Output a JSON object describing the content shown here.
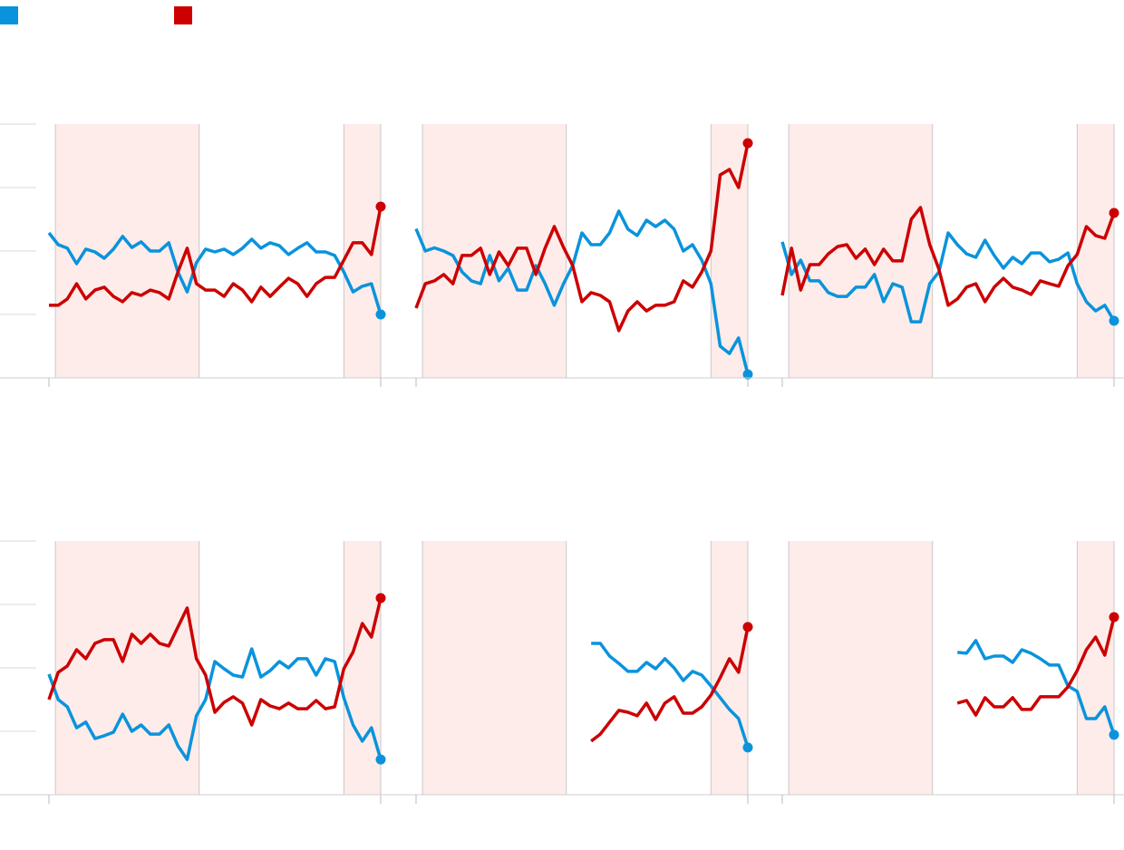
{
  "chart_data": [
    {
      "type": "line",
      "xlim": [
        0,
        36
      ],
      "xticks": [
        0,
        36
      ],
      "ylim": [
        0,
        80
      ],
      "yticks": [
        0,
        20,
        40,
        60,
        80
      ],
      "shading": [
        [
          0.7,
          16.3
        ],
        [
          32,
          36
        ]
      ],
      "shade_color": "#fdecea",
      "series": [
        {
          "color": "#0a93dc",
          "values": [
            45.7,
            42,
            40.9,
            36,
            40.6,
            39.7,
            37.7,
            40.6,
            44.6,
            41.1,
            42.9,
            40,
            40,
            42.6,
            33.4,
            27.1,
            36.3,
            40.6,
            39.7,
            40.6,
            38.9,
            40.9,
            43.7,
            40.9,
            42.6,
            41.7,
            38.9,
            40.9,
            42.6,
            39.7,
            39.7,
            38.6,
            33.4,
            27.1,
            28.9,
            29.7,
            20
          ]
        },
        {
          "color": "#cc0000",
          "values": [
            22.9,
            22.9,
            24.9,
            29.7,
            24.9,
            27.7,
            28.6,
            25.7,
            24,
            26.9,
            26,
            27.7,
            26.9,
            24.9,
            33.4,
            40.9,
            29.7,
            27.7,
            27.7,
            25.7,
            29.7,
            27.7,
            24,
            28.6,
            25.7,
            28.6,
            31.4,
            29.7,
            25.7,
            29.7,
            31.7,
            31.7,
            37.1,
            42.6,
            42.6,
            38.9,
            54
          ]
        }
      ]
    },
    {
      "type": "line",
      "xlim": [
        0,
        36
      ],
      "xticks": [
        0,
        36
      ],
      "ylim": [
        0,
        80
      ],
      "yticks": [
        0,
        20,
        40,
        60,
        80
      ],
      "shading": [
        [
          0.7,
          16.3
        ],
        [
          32,
          36
        ]
      ],
      "shade_color": "#fdecea",
      "series": [
        {
          "color": "#0a93dc",
          "values": [
            47,
            40,
            41,
            40,
            38.6,
            33.4,
            30.6,
            29.7,
            38.6,
            30.6,
            34.6,
            27.7,
            27.7,
            35.4,
            29.7,
            22.9,
            29.7,
            35.4,
            45.7,
            42,
            42,
            45.7,
            52.6,
            46.9,
            44.9,
            49.7,
            47.7,
            49.7,
            46.9,
            40,
            42,
            37.1,
            29.7,
            10,
            7.7,
            12.6,
            1.1
          ]
        },
        {
          "color": "#cc0000",
          "values": [
            22,
            29.7,
            30.6,
            32.6,
            29.7,
            38.6,
            38.6,
            40.9,
            32.6,
            39.7,
            35.4,
            40.9,
            40.9,
            32.6,
            40.9,
            47.7,
            41.1,
            35.4,
            24,
            26.9,
            26,
            24,
            14.9,
            21.1,
            24,
            21.1,
            22.9,
            22.9,
            24,
            30.6,
            28.6,
            33.4,
            40,
            64,
            65.7,
            60,
            74
          ]
        }
      ]
    },
    {
      "type": "line",
      "xlim": [
        0,
        36
      ],
      "xticks": [
        0,
        36
      ],
      "ylim": [
        0,
        80
      ],
      "yticks": [
        0,
        20,
        40,
        60,
        80
      ],
      "shading": [
        [
          0.7,
          16.3
        ],
        [
          32,
          36
        ]
      ],
      "shade_color": "#fdecea",
      "series": [
        {
          "color": "#0a93dc",
          "values": [
            42.9,
            32.6,
            37.1,
            30.6,
            30.6,
            26.9,
            25.7,
            25.7,
            28.6,
            28.6,
            32.6,
            24,
            29.7,
            28.6,
            17.7,
            17.7,
            29.7,
            33.4,
            45.7,
            42,
            39.1,
            38,
            43.4,
            38.6,
            34.6,
            38,
            36,
            39.4,
            39.4,
            36.6,
            37.4,
            39.4,
            29.7,
            24,
            21.1,
            22.9,
            18
          ]
        },
        {
          "color": "#cc0000",
          "values": [
            26,
            40.9,
            27.7,
            35.7,
            35.7,
            39.1,
            41.4,
            42,
            37.7,
            40.6,
            35.7,
            40.6,
            36.9,
            36.9,
            50,
            53.7,
            42,
            34.3,
            22.9,
            24.9,
            28.6,
            29.7,
            24,
            28.6,
            31.4,
            28.6,
            27.7,
            26.3,
            30.6,
            29.7,
            28.9,
            35.4,
            38.9,
            47.7,
            44.9,
            44,
            52
          ]
        }
      ]
    },
    {
      "type": "line",
      "xlim": [
        0,
        36
      ],
      "xticks": [
        0,
        36
      ],
      "ylim": [
        0,
        80
      ],
      "yticks": [
        0,
        20,
        40,
        60,
        80
      ],
      "shading": [
        [
          0.7,
          16.3
        ],
        [
          32,
          36
        ]
      ],
      "shade_color": "#fdecea",
      "series": [
        {
          "color": "#0a93dc",
          "values": [
            38,
            30,
            27.7,
            21.1,
            22.9,
            17.7,
            18.6,
            19.7,
            25.4,
            20,
            22,
            19.1,
            19.1,
            22,
            15.4,
            11.1,
            24.9,
            30,
            42,
            39.7,
            37.7,
            37.1,
            46,
            37.1,
            39.1,
            42,
            40,
            42.9,
            42.9,
            37.7,
            42.9,
            42,
            30.6,
            22,
            16.9,
            21.1,
            11.1
          ]
        },
        {
          "color": "#cc0000",
          "values": [
            30,
            38.6,
            40.6,
            45.7,
            42.9,
            47.7,
            48.9,
            48.9,
            42,
            50.6,
            47.7,
            50.6,
            47.7,
            46.9,
            52.9,
            58.9,
            42.9,
            37.7,
            26,
            29.1,
            30.9,
            28.9,
            22,
            30,
            28,
            27.1,
            28.9,
            27.1,
            27.1,
            29.7,
            27.1,
            27.7,
            39.7,
            45,
            54,
            49.7,
            62
          ]
        }
      ]
    },
    {
      "type": "line",
      "xlim": [
        0,
        36
      ],
      "xticks": [
        0,
        36
      ],
      "ylim": [
        0,
        80
      ],
      "yticks": [
        0,
        20,
        40,
        60,
        80
      ],
      "shading": [
        [
          0.7,
          16.3
        ],
        [
          32,
          36
        ]
      ],
      "shade_color": "#fdecea",
      "series": [
        {
          "color": "#0a93dc",
          "values": [
            null,
            null,
            null,
            null,
            null,
            null,
            null,
            null,
            null,
            null,
            null,
            null,
            null,
            null,
            null,
            null,
            null,
            null,
            null,
            47.7,
            47.7,
            43.7,
            41.4,
            38.9,
            38.9,
            41.7,
            39.7,
            42.9,
            40,
            36,
            38.9,
            37.7,
            34.3,
            30.6,
            26.9,
            24,
            14.9
          ]
        },
        {
          "color": "#cc0000",
          "values": [
            null,
            null,
            null,
            null,
            null,
            null,
            null,
            null,
            null,
            null,
            null,
            null,
            null,
            null,
            null,
            null,
            null,
            null,
            null,
            16.9,
            19.1,
            22.9,
            26.6,
            26,
            24.9,
            28.9,
            23.7,
            28.9,
            30.9,
            25.7,
            25.7,
            27.7,
            31.4,
            36.9,
            42.9,
            38.6,
            52.9
          ]
        }
      ]
    },
    {
      "type": "line",
      "xlim": [
        0,
        36
      ],
      "xticks": [
        0,
        36
      ],
      "ylim": [
        0,
        80
      ],
      "yticks": [
        0,
        20,
        40,
        60,
        80
      ],
      "shading": [
        [
          0.7,
          16.3
        ],
        [
          32,
          36
        ]
      ],
      "shade_color": "#fdecea",
      "series": [
        {
          "color": "#0a93dc",
          "values": [
            null,
            null,
            null,
            null,
            null,
            null,
            null,
            null,
            null,
            null,
            null,
            null,
            null,
            null,
            null,
            null,
            null,
            null,
            null,
            44.9,
            44.6,
            48.6,
            42.9,
            43.7,
            43.7,
            41.7,
            45.7,
            44.6,
            42.9,
            40.9,
            40.9,
            34.3,
            32.6,
            24,
            24,
            27.7,
            18.9
          ]
        },
        {
          "color": "#cc0000",
          "values": [
            null,
            null,
            null,
            null,
            null,
            null,
            null,
            null,
            null,
            null,
            null,
            null,
            null,
            null,
            null,
            null,
            null,
            null,
            null,
            28.9,
            29.7,
            25.1,
            30.6,
            27.7,
            27.7,
            30.6,
            26.9,
            26.9,
            30.9,
            30.9,
            30.9,
            34,
            39.1,
            45.7,
            49.7,
            44,
            56
          ]
        }
      ]
    }
  ]
}
